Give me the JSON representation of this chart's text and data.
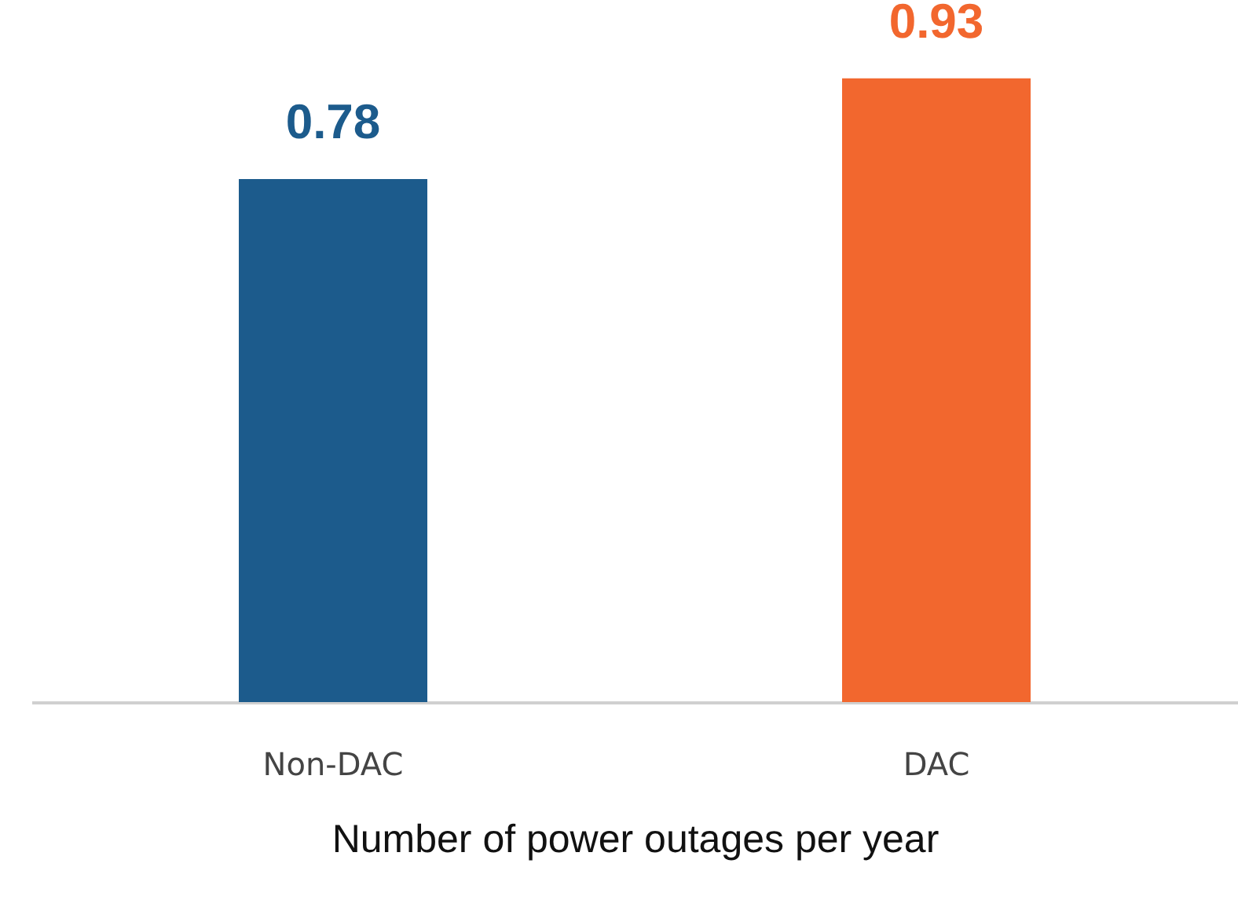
{
  "chart_data": {
    "type": "bar",
    "xlabel": "Number of power outages per year",
    "categories": [
      "Non-DAC",
      "DAC"
    ],
    "values": [
      0.78,
      0.93
    ],
    "colors": [
      "#1c5b8c",
      "#f2672e"
    ],
    "data_labels": true
  }
}
